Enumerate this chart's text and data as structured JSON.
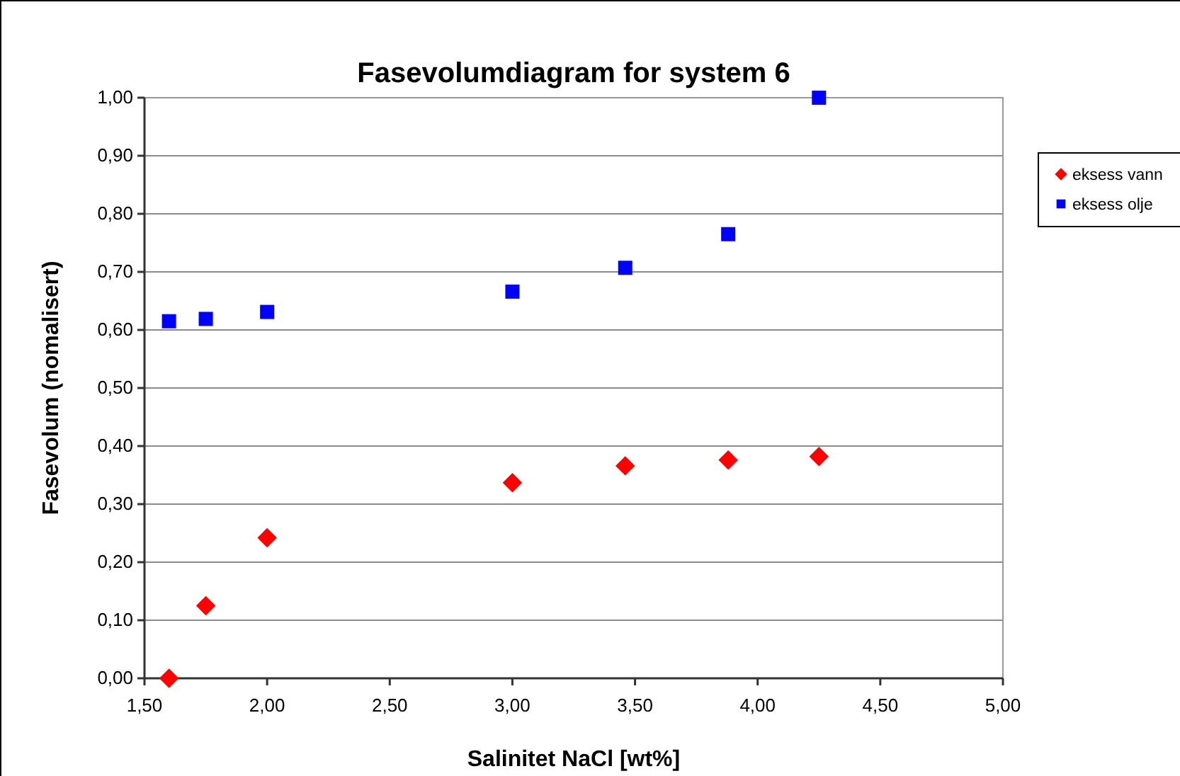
{
  "chart_data": {
    "type": "scatter",
    "title": "Fasevolumdiagram for system 6",
    "xlabel": "Salinitet NaCl [wt%]",
    "ylabel": "Fasevolum (nomalisert)",
    "series": [
      {
        "name": "eksess vann",
        "color": "#ff0000",
        "marker": "diamond",
        "x": [
          1.6,
          1.75,
          2.0,
          3.0,
          3.46,
          3.88,
          4.25
        ],
        "values": [
          0.0,
          0.125,
          0.242,
          0.337,
          0.366,
          0.376,
          0.382
        ]
      },
      {
        "name": "eksess olje",
        "color": "#0000ff",
        "marker": "square",
        "x": [
          1.6,
          1.75,
          2.0,
          3.0,
          3.46,
          3.88,
          4.25
        ],
        "values": [
          0.615,
          0.619,
          0.631,
          0.666,
          0.707,
          0.765,
          1.0
        ]
      }
    ],
    "xlim": [
      1.5,
      5.0
    ],
    "xticks": [
      {
        "value": 1.5,
        "label": "1,50"
      },
      {
        "value": 2.0,
        "label": "2,00"
      },
      {
        "value": 2.5,
        "label": "2,50"
      },
      {
        "value": 3.0,
        "label": "3,00"
      },
      {
        "value": 3.5,
        "label": "3,50"
      },
      {
        "value": 4.0,
        "label": "4,00"
      },
      {
        "value": 4.5,
        "label": "4,50"
      },
      {
        "value": 5.0,
        "label": "5,00"
      }
    ],
    "ylim": [
      0,
      1
    ],
    "yticks": [
      {
        "value": 0,
        "label": "0,00"
      },
      {
        "value": 0.1,
        "label": "0,10"
      },
      {
        "value": 0.2,
        "label": "0,20"
      },
      {
        "value": 0.3,
        "label": "0,30"
      },
      {
        "value": 0.4,
        "label": "0,40"
      },
      {
        "value": 0.5,
        "label": "0,50"
      },
      {
        "value": 0.6,
        "label": "0,60"
      },
      {
        "value": 0.7,
        "label": "0,70"
      },
      {
        "value": 0.8,
        "label": "0,80"
      },
      {
        "value": 0.9,
        "label": "0,90"
      },
      {
        "value": 1.0,
        "label": "1,00"
      }
    ],
    "grid": "y",
    "legend": "right"
  }
}
